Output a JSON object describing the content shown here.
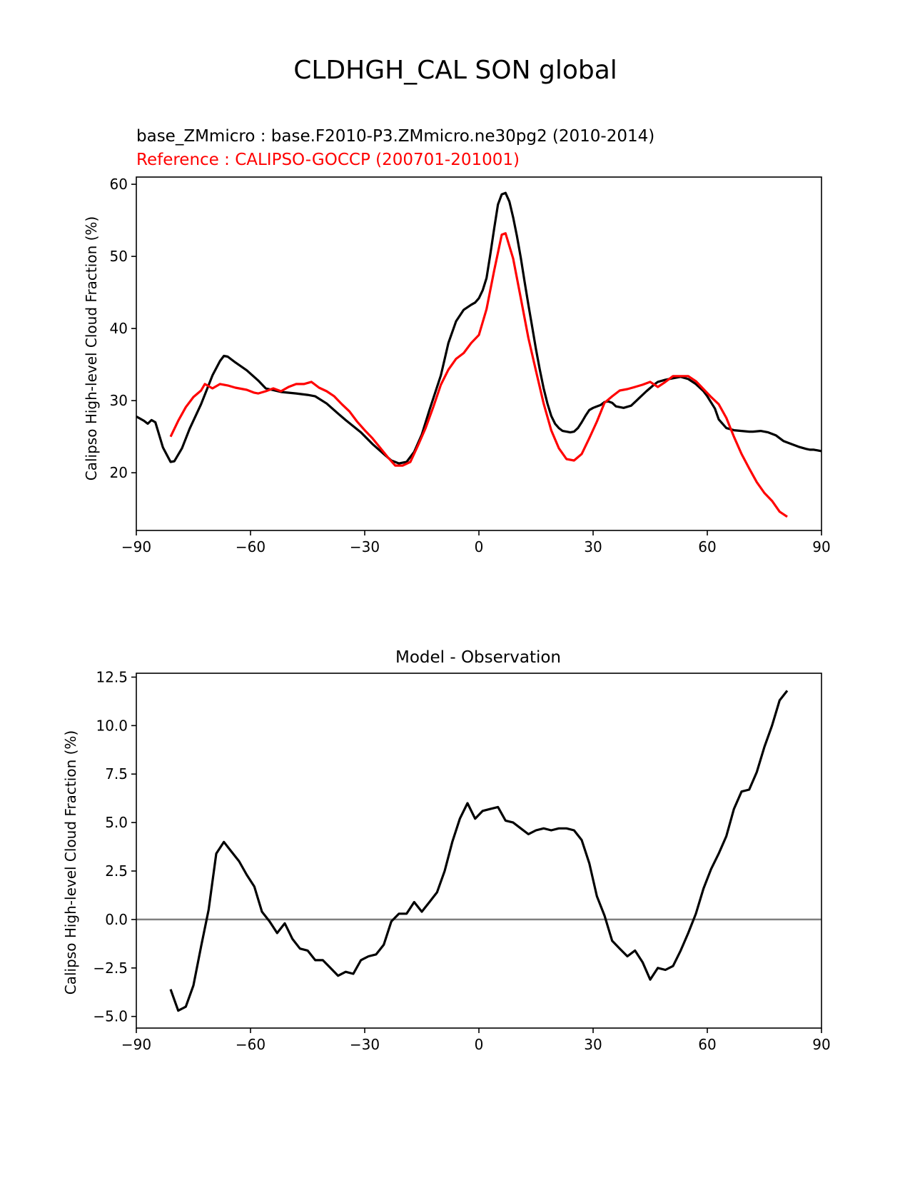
{
  "figure": {
    "suptitle": "CLDHGH_CAL SON global"
  },
  "colors": {
    "model": "#000000",
    "reference": "#ff0000",
    "zero_line": "#808080",
    "axes": "#000000"
  },
  "chart_data": [
    {
      "type": "line",
      "name": "zonal-mean",
      "title_left_1": "base_ZMmicro : base.F2010-P3.ZMmicro.ne30pg2 (2010-2014)",
      "title_left_2": "Reference : CALIPSO-GOCCP (200701-201001)",
      "xlabel": "",
      "ylabel": "Calipso High-level Cloud Fraction (%)",
      "xlim": [
        -90,
        90
      ],
      "ylim": [
        12,
        61
      ],
      "xticks": [
        -90,
        -60,
        -30,
        0,
        30,
        60,
        90
      ],
      "xtick_labels": [
        "−90",
        "−60",
        "−30",
        "0",
        "30",
        "60",
        "90"
      ],
      "yticks": [
        20,
        30,
        40,
        50,
        60
      ],
      "ytick_labels": [
        "20",
        "30",
        "40",
        "50",
        "60"
      ],
      "series": [
        {
          "name": "base_ZMmicro",
          "color": "#000000",
          "x": [
            -90,
            -88,
            -87,
            -86,
            -85,
            -83,
            -81,
            -80,
            -78,
            -76,
            -73,
            -70,
            -68,
            -67,
            -66,
            -64,
            -61,
            -58,
            -56,
            -52,
            -48,
            -45,
            -43,
            -40,
            -37,
            -35,
            -31,
            -28,
            -25,
            -23,
            -21,
            -19,
            -17,
            -15,
            -13,
            -10,
            -8,
            -6,
            -4,
            -2,
            -1,
            0,
            1,
            2,
            3,
            4,
            5,
            6,
            7,
            8,
            9,
            10,
            11,
            12,
            13,
            14,
            15,
            16,
            17,
            18,
            19,
            20,
            21,
            22,
            23,
            24,
            25,
            26,
            27,
            28,
            29,
            30,
            31,
            32,
            33,
            34,
            35,
            36,
            38,
            40,
            42,
            44,
            46,
            47,
            49,
            51,
            53,
            55,
            57,
            59,
            60,
            62,
            63,
            65,
            67,
            69,
            71,
            72,
            74,
            76,
            78,
            79,
            80,
            82,
            84,
            86,
            87,
            88,
            90
          ],
          "y": [
            27.8,
            27.2,
            26.8,
            27.3,
            27.0,
            23.5,
            21.5,
            21.6,
            23.4,
            26.1,
            29.5,
            33.5,
            35.5,
            36.2,
            36.1,
            35.3,
            34.2,
            32.8,
            31.7,
            31.2,
            31.0,
            30.8,
            30.6,
            29.6,
            28.2,
            27.3,
            25.6,
            24.0,
            22.6,
            21.7,
            21.3,
            21.5,
            22.9,
            25.3,
            28.7,
            33.5,
            38.0,
            41.0,
            42.6,
            43.3,
            43.6,
            44.2,
            45.3,
            47.0,
            50.3,
            53.8,
            57.2,
            58.6,
            58.8,
            57.6,
            55.4,
            52.8,
            49.8,
            46.5,
            43.3,
            40.2,
            37.1,
            34.3,
            31.7,
            29.6,
            27.9,
            26.8,
            26.2,
            25.8,
            25.7,
            25.6,
            25.7,
            26.2,
            27.0,
            27.9,
            28.7,
            29.0,
            29.2,
            29.4,
            29.8,
            29.9,
            29.7,
            29.2,
            29.0,
            29.3,
            30.3,
            31.3,
            32.2,
            32.6,
            32.9,
            33.1,
            33.3,
            33.0,
            32.3,
            31.3,
            30.6,
            28.9,
            27.4,
            26.2,
            25.9,
            25.8,
            25.7,
            25.7,
            25.8,
            25.6,
            25.2,
            24.8,
            24.4,
            24.0,
            23.6,
            23.3,
            23.2,
            23.2,
            23.0
          ]
        },
        {
          "name": "Reference",
          "color": "#ff0000",
          "x": [
            -81,
            -79,
            -77,
            -75,
            -73,
            -72,
            -70,
            -68,
            -66,
            -64,
            -61,
            -59,
            -58,
            -56,
            -54,
            -52,
            -50,
            -48,
            -46,
            -44,
            -42,
            -40,
            -38,
            -36,
            -34,
            -32,
            -30,
            -28,
            -26,
            -24,
            -22,
            -20,
            -18,
            -16,
            -14,
            -12,
            -10,
            -8,
            -6,
            -4,
            -2,
            0,
            2,
            4,
            6,
            7,
            9,
            11,
            13,
            15,
            17,
            19,
            21,
            23,
            25,
            27,
            29,
            31,
            33,
            35,
            37,
            39,
            41,
            43,
            45,
            47,
            49,
            51,
            53,
            55,
            57,
            59,
            61,
            63,
            65,
            67,
            69,
            71,
            73,
            75,
            77,
            79,
            81
          ],
          "y": [
            25.0,
            27.2,
            29.1,
            30.5,
            31.4,
            32.3,
            31.7,
            32.3,
            32.1,
            31.8,
            31.5,
            31.1,
            31.0,
            31.3,
            31.7,
            31.3,
            31.9,
            32.3,
            32.3,
            32.6,
            31.8,
            31.3,
            30.6,
            29.5,
            28.5,
            27.1,
            25.9,
            24.8,
            23.5,
            22.2,
            21.0,
            21.0,
            21.5,
            23.8,
            26.2,
            29.1,
            32.2,
            34.3,
            35.8,
            36.6,
            38.0,
            39.1,
            42.7,
            48.0,
            53.0,
            53.2,
            49.7,
            44.2,
            38.7,
            34.1,
            29.6,
            25.9,
            23.4,
            21.9,
            21.7,
            22.6,
            24.8,
            27.1,
            29.7,
            30.6,
            31.4,
            31.6,
            31.9,
            32.2,
            32.6,
            31.9,
            32.6,
            33.4,
            33.4,
            33.4,
            32.7,
            31.6,
            30.5,
            29.5,
            27.6,
            25.0,
            22.6,
            20.6,
            18.7,
            17.2,
            16.1,
            14.6,
            13.9
          ]
        }
      ]
    },
    {
      "type": "line",
      "name": "difference",
      "title": "Model - Observation",
      "xlabel": "",
      "ylabel": "Calipso High-level Cloud Fraction (%)",
      "xlim": [
        -90,
        90
      ],
      "ylim": [
        -5.6,
        12.7
      ],
      "xticks": [
        -90,
        -60,
        -30,
        0,
        30,
        60,
        90
      ],
      "xtick_labels": [
        "−90",
        "−60",
        "−30",
        "0",
        "30",
        "60",
        "90"
      ],
      "yticks": [
        -5.0,
        -2.5,
        0.0,
        2.5,
        5.0,
        7.5,
        10.0,
        12.5
      ],
      "ytick_labels": [
        "−5.0",
        "−2.5",
        "0.0",
        "2.5",
        "5.0",
        "7.5",
        "10.0",
        "12.5"
      ],
      "hline": 0,
      "series": [
        {
          "name": "Model - Observation",
          "color": "#000000",
          "x": [
            -81,
            -79,
            -77,
            -75,
            -73,
            -71,
            -69,
            -67,
            -65,
            -63,
            -61,
            -59,
            -57,
            -55,
            -53,
            -51,
            -49,
            -47,
            -45,
            -43,
            -41,
            -39,
            -37,
            -35,
            -33,
            -31,
            -29,
            -27,
            -25,
            -23,
            -21,
            -19,
            -17,
            -15,
            -13,
            -11,
            -9,
            -7,
            -5,
            -3,
            -1,
            1,
            3,
            5,
            7,
            9,
            11,
            13,
            15,
            17,
            19,
            21,
            23,
            25,
            27,
            29,
            31,
            33,
            35,
            37,
            39,
            41,
            43,
            45,
            47,
            49,
            51,
            53,
            55,
            57,
            59,
            61,
            63,
            65,
            67,
            69,
            71,
            73,
            75,
            77,
            79,
            81
          ],
          "y": [
            -3.6,
            -4.7,
            -4.5,
            -3.4,
            -1.4,
            0.5,
            3.4,
            4.0,
            3.5,
            3.0,
            2.3,
            1.7,
            0.4,
            -0.1,
            -0.7,
            -0.2,
            -1.0,
            -1.5,
            -1.6,
            -2.1,
            -2.1,
            -2.5,
            -2.9,
            -2.7,
            -2.8,
            -2.1,
            -1.9,
            -1.8,
            -1.3,
            -0.1,
            0.3,
            0.3,
            0.9,
            0.4,
            0.9,
            1.4,
            2.5,
            4.0,
            5.2,
            6.0,
            5.2,
            5.6,
            5.7,
            5.8,
            5.1,
            5.0,
            4.7,
            4.4,
            4.6,
            4.7,
            4.6,
            4.7,
            4.7,
            4.6,
            4.1,
            2.9,
            1.2,
            0.2,
            -1.1,
            -1.5,
            -1.9,
            -1.6,
            -2.2,
            -3.1,
            -2.5,
            -2.6,
            -2.4,
            -1.6,
            -0.7,
            0.3,
            1.6,
            2.6,
            3.4,
            4.3,
            5.7,
            6.6,
            6.7,
            7.6,
            8.9,
            10.0,
            11.3,
            11.8
          ]
        }
      ]
    }
  ]
}
